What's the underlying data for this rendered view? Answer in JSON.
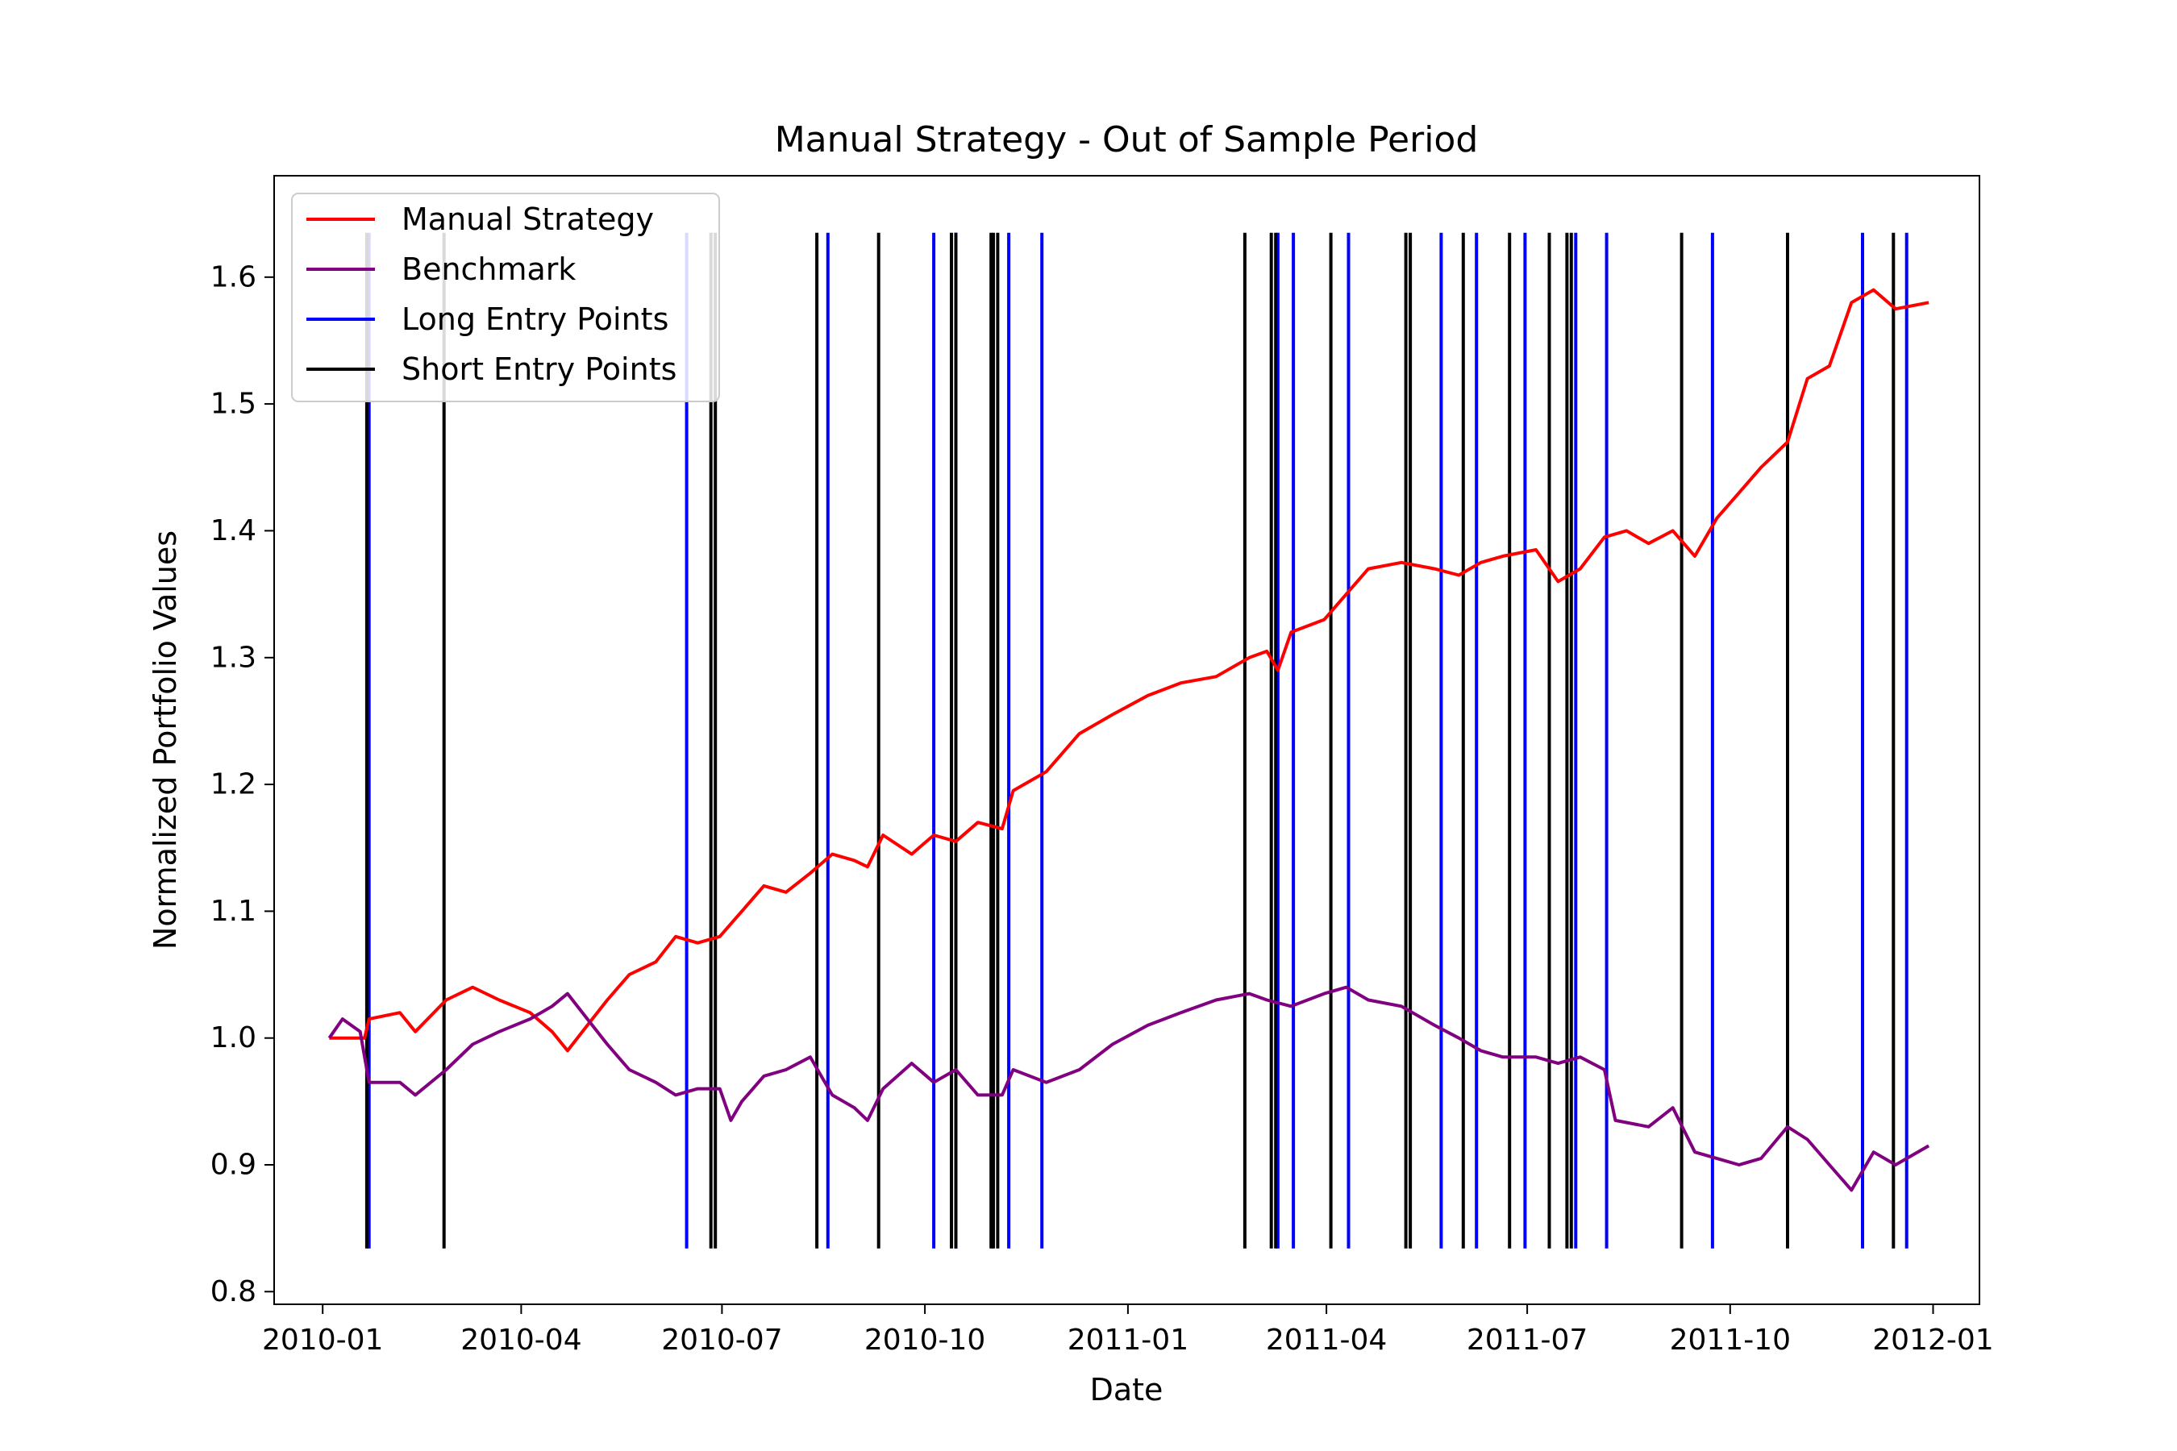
{
  "chart_data": {
    "type": "line",
    "title": "Manual Strategy - Out of Sample Period",
    "xlabel": "Date",
    "ylabel": "Normalized Portfolio Values",
    "xlim": [
      "2009-12-10",
      "2012-01-22"
    ],
    "ylim": [
      0.79,
      1.68
    ],
    "x_ticks": [
      "2010-01",
      "2010-04",
      "2010-07",
      "2010-10",
      "2011-01",
      "2011-04",
      "2011-07",
      "2011-10",
      "2012-01"
    ],
    "y_ticks": [
      0.8,
      0.9,
      1.0,
      1.1,
      1.2,
      1.3,
      1.4,
      1.5,
      1.6
    ],
    "grid": false,
    "legend": {
      "placement": "top-left"
    },
    "series": [
      {
        "name": "Manual Strategy",
        "color": "#ff0000",
        "points": [
          [
            "2010-01-04",
            1.0
          ],
          [
            "2010-01-20",
            1.0
          ],
          [
            "2010-01-22",
            1.015
          ],
          [
            "2010-02-05",
            1.02
          ],
          [
            "2010-02-12",
            1.005
          ],
          [
            "2010-02-26",
            1.03
          ],
          [
            "2010-03-10",
            1.04
          ],
          [
            "2010-03-22",
            1.03
          ],
          [
            "2010-04-05",
            1.02
          ],
          [
            "2010-04-15",
            1.005
          ],
          [
            "2010-04-22",
            0.99
          ],
          [
            "2010-05-01",
            1.01
          ],
          [
            "2010-05-10",
            1.03
          ],
          [
            "2010-05-20",
            1.05
          ],
          [
            "2010-06-01",
            1.06
          ],
          [
            "2010-06-10",
            1.08
          ],
          [
            "2010-06-20",
            1.075
          ],
          [
            "2010-06-30",
            1.08
          ],
          [
            "2010-07-10",
            1.1
          ],
          [
            "2010-07-20",
            1.12
          ],
          [
            "2010-07-30",
            1.115
          ],
          [
            "2010-08-10",
            1.13
          ],
          [
            "2010-08-20",
            1.145
          ],
          [
            "2010-08-30",
            1.14
          ],
          [
            "2010-09-05",
            1.135
          ],
          [
            "2010-09-12",
            1.16
          ],
          [
            "2010-09-25",
            1.145
          ],
          [
            "2010-10-05",
            1.16
          ],
          [
            "2010-10-15",
            1.155
          ],
          [
            "2010-10-25",
            1.17
          ],
          [
            "2010-11-05",
            1.165
          ],
          [
            "2010-11-10",
            1.195
          ],
          [
            "2010-11-25",
            1.21
          ],
          [
            "2010-12-10",
            1.24
          ],
          [
            "2010-12-25",
            1.255
          ],
          [
            "2011-01-10",
            1.27
          ],
          [
            "2011-01-25",
            1.28
          ],
          [
            "2011-02-10",
            1.285
          ],
          [
            "2011-02-25",
            1.3
          ],
          [
            "2011-03-05",
            1.305
          ],
          [
            "2011-03-10",
            1.29
          ],
          [
            "2011-03-16",
            1.32
          ],
          [
            "2011-03-31",
            1.33
          ],
          [
            "2011-04-10",
            1.35
          ],
          [
            "2011-04-20",
            1.37
          ],
          [
            "2011-05-05",
            1.375
          ],
          [
            "2011-05-20",
            1.37
          ],
          [
            "2011-05-31",
            1.365
          ],
          [
            "2011-06-10",
            1.375
          ],
          [
            "2011-06-20",
            1.38
          ],
          [
            "2011-07-05",
            1.385
          ],
          [
            "2011-07-15",
            1.36
          ],
          [
            "2011-07-25",
            1.37
          ],
          [
            "2011-08-05",
            1.395
          ],
          [
            "2011-08-15",
            1.4
          ],
          [
            "2011-08-25",
            1.39
          ],
          [
            "2011-09-05",
            1.4
          ],
          [
            "2011-09-15",
            1.38
          ],
          [
            "2011-09-25",
            1.41
          ],
          [
            "2011-10-05",
            1.43
          ],
          [
            "2011-10-15",
            1.45
          ],
          [
            "2011-10-27",
            1.47
          ],
          [
            "2011-11-05",
            1.52
          ],
          [
            "2011-11-15",
            1.53
          ],
          [
            "2011-11-25",
            1.58
          ],
          [
            "2011-12-05",
            1.59
          ],
          [
            "2011-12-15",
            1.575
          ],
          [
            "2011-12-30",
            1.58
          ]
        ]
      },
      {
        "name": "Benchmark",
        "color": "#800080",
        "points": [
          [
            "2010-01-04",
            1.0
          ],
          [
            "2010-01-10",
            1.015
          ],
          [
            "2010-01-18",
            1.005
          ],
          [
            "2010-01-22",
            0.965
          ],
          [
            "2010-02-05",
            0.965
          ],
          [
            "2010-02-12",
            0.955
          ],
          [
            "2010-02-26",
            0.975
          ],
          [
            "2010-03-10",
            0.995
          ],
          [
            "2010-03-22",
            1.005
          ],
          [
            "2010-04-05",
            1.015
          ],
          [
            "2010-04-15",
            1.025
          ],
          [
            "2010-04-22",
            1.035
          ],
          [
            "2010-05-01",
            1.015
          ],
          [
            "2010-05-10",
            0.995
          ],
          [
            "2010-05-20",
            0.975
          ],
          [
            "2010-06-01",
            0.965
          ],
          [
            "2010-06-10",
            0.955
          ],
          [
            "2010-06-20",
            0.96
          ],
          [
            "2010-06-30",
            0.96
          ],
          [
            "2010-07-05",
            0.935
          ],
          [
            "2010-07-10",
            0.95
          ],
          [
            "2010-07-20",
            0.97
          ],
          [
            "2010-07-30",
            0.975
          ],
          [
            "2010-08-10",
            0.985
          ],
          [
            "2010-08-20",
            0.955
          ],
          [
            "2010-08-30",
            0.945
          ],
          [
            "2010-09-05",
            0.935
          ],
          [
            "2010-09-12",
            0.96
          ],
          [
            "2010-09-25",
            0.98
          ],
          [
            "2010-10-05",
            0.965
          ],
          [
            "2010-10-15",
            0.975
          ],
          [
            "2010-10-25",
            0.955
          ],
          [
            "2010-11-05",
            0.955
          ],
          [
            "2010-11-10",
            0.975
          ],
          [
            "2010-11-25",
            0.965
          ],
          [
            "2010-12-10",
            0.975
          ],
          [
            "2010-12-25",
            0.995
          ],
          [
            "2011-01-10",
            1.01
          ],
          [
            "2011-01-25",
            1.02
          ],
          [
            "2011-02-10",
            1.03
          ],
          [
            "2011-02-25",
            1.035
          ],
          [
            "2011-03-05",
            1.03
          ],
          [
            "2011-03-16",
            1.025
          ],
          [
            "2011-03-31",
            1.035
          ],
          [
            "2011-04-10",
            1.04
          ],
          [
            "2011-04-20",
            1.03
          ],
          [
            "2011-05-05",
            1.025
          ],
          [
            "2011-05-20",
            1.01
          ],
          [
            "2011-05-31",
            1.0
          ],
          [
            "2011-06-10",
            0.99
          ],
          [
            "2011-06-20",
            0.985
          ],
          [
            "2011-07-05",
            0.985
          ],
          [
            "2011-07-15",
            0.98
          ],
          [
            "2011-07-25",
            0.985
          ],
          [
            "2011-08-05",
            0.975
          ],
          [
            "2011-08-10",
            0.935
          ],
          [
            "2011-08-25",
            0.93
          ],
          [
            "2011-09-05",
            0.945
          ],
          [
            "2011-09-15",
            0.91
          ],
          [
            "2011-09-25",
            0.905
          ],
          [
            "2011-10-05",
            0.9
          ],
          [
            "2011-10-15",
            0.905
          ],
          [
            "2011-10-27",
            0.93
          ],
          [
            "2011-11-05",
            0.92
          ],
          [
            "2011-11-15",
            0.9
          ],
          [
            "2011-11-25",
            0.88
          ],
          [
            "2011-12-05",
            0.91
          ],
          [
            "2011-12-15",
            0.9
          ],
          [
            "2011-12-30",
            0.915
          ]
        ]
      }
    ],
    "entry_points": {
      "y_range": [
        0.834,
        1.635
      ],
      "long": {
        "name": "Long Entry Points",
        "color": "#0000ff",
        "dates": [
          "2010-01-22",
          "2010-06-15",
          "2010-08-18",
          "2010-10-05",
          "2010-10-15",
          "2010-11-08",
          "2010-11-23",
          "2011-03-10",
          "2011-03-17",
          "2011-04-11",
          "2011-05-23",
          "2011-06-08",
          "2011-06-30",
          "2011-07-23",
          "2011-08-06",
          "2011-09-23",
          "2011-11-30",
          "2011-12-20"
        ]
      },
      "short": {
        "name": "Short Entry Points",
        "color": "#000000",
        "dates": [
          "2010-01-21",
          "2010-02-25",
          "2010-06-26",
          "2010-06-28",
          "2010-08-13",
          "2010-09-10",
          "2010-10-13",
          "2010-10-15",
          "2010-10-31",
          "2010-11-01",
          "2010-11-03",
          "2011-02-23",
          "2011-03-07",
          "2011-03-09",
          "2011-04-03",
          "2011-05-07",
          "2011-05-09",
          "2011-06-02",
          "2011-06-23",
          "2011-07-11",
          "2011-07-19",
          "2011-07-21",
          "2011-09-09",
          "2011-10-27",
          "2011-12-14"
        ]
      }
    }
  }
}
